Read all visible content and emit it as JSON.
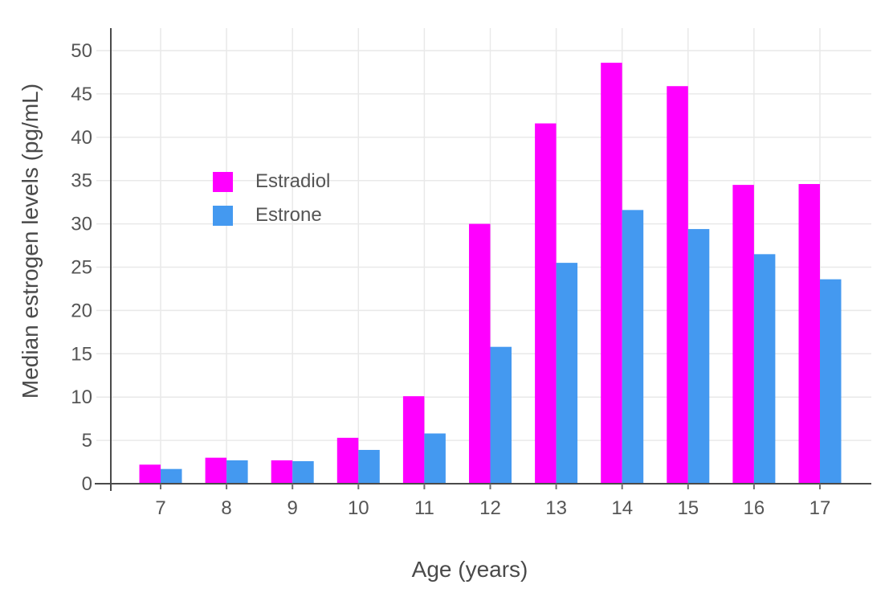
{
  "chart_data": {
    "type": "bar",
    "title": "",
    "xlabel": "Age (years)",
    "ylabel": "Median estrogen levels (pg/mL)",
    "categories": [
      "7",
      "8",
      "9",
      "10",
      "11",
      "12",
      "13",
      "14",
      "15",
      "16",
      "17"
    ],
    "series": [
      {
        "name": "Estradiol",
        "color": "#ff00ff",
        "values": [
          2.2,
          3.0,
          2.7,
          5.3,
          10.1,
          30.0,
          41.6,
          48.6,
          45.9,
          34.5,
          34.6
        ]
      },
      {
        "name": "Estrone",
        "color": "#4499f0",
        "values": [
          1.7,
          2.7,
          2.6,
          3.9,
          5.8,
          15.8,
          25.5,
          31.6,
          29.4,
          26.5,
          23.6
        ]
      }
    ],
    "ylim": [
      0,
      52.6
    ],
    "yticks": [
      0,
      5,
      10,
      15,
      20,
      25,
      30,
      35,
      40,
      45,
      50
    ],
    "grid": true,
    "legend_position": "inside-top-left",
    "bar_mode": "group"
  },
  "colors": {
    "background": "#ffffff",
    "grid": "#e9e9e9",
    "axis_line": "#4a4a4a",
    "tick_mark": "#6f6f6f",
    "tick_text": "#555555",
    "title_text": "#4a4a4a"
  }
}
